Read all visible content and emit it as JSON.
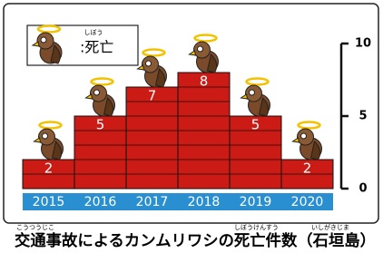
{
  "chart_data": {
    "type": "bar",
    "title": "交通事故によるカンムリワシの死亡件数（石垣島）",
    "title_ruby": [
      "こうつうじこ",
      "しぼうけんすう",
      "いしがきじま"
    ],
    "legend": {
      "label": ":死亡",
      "ruby": "しぼう"
    },
    "categories": [
      "2015",
      "2016",
      "2017",
      "2018",
      "2019",
      "2020"
    ],
    "values": [
      2,
      5,
      7,
      8,
      5,
      2
    ],
    "color": "#cc1a14",
    "ylim": [
      0,
      10
    ],
    "yticks": [
      0,
      5,
      10
    ]
  }
}
